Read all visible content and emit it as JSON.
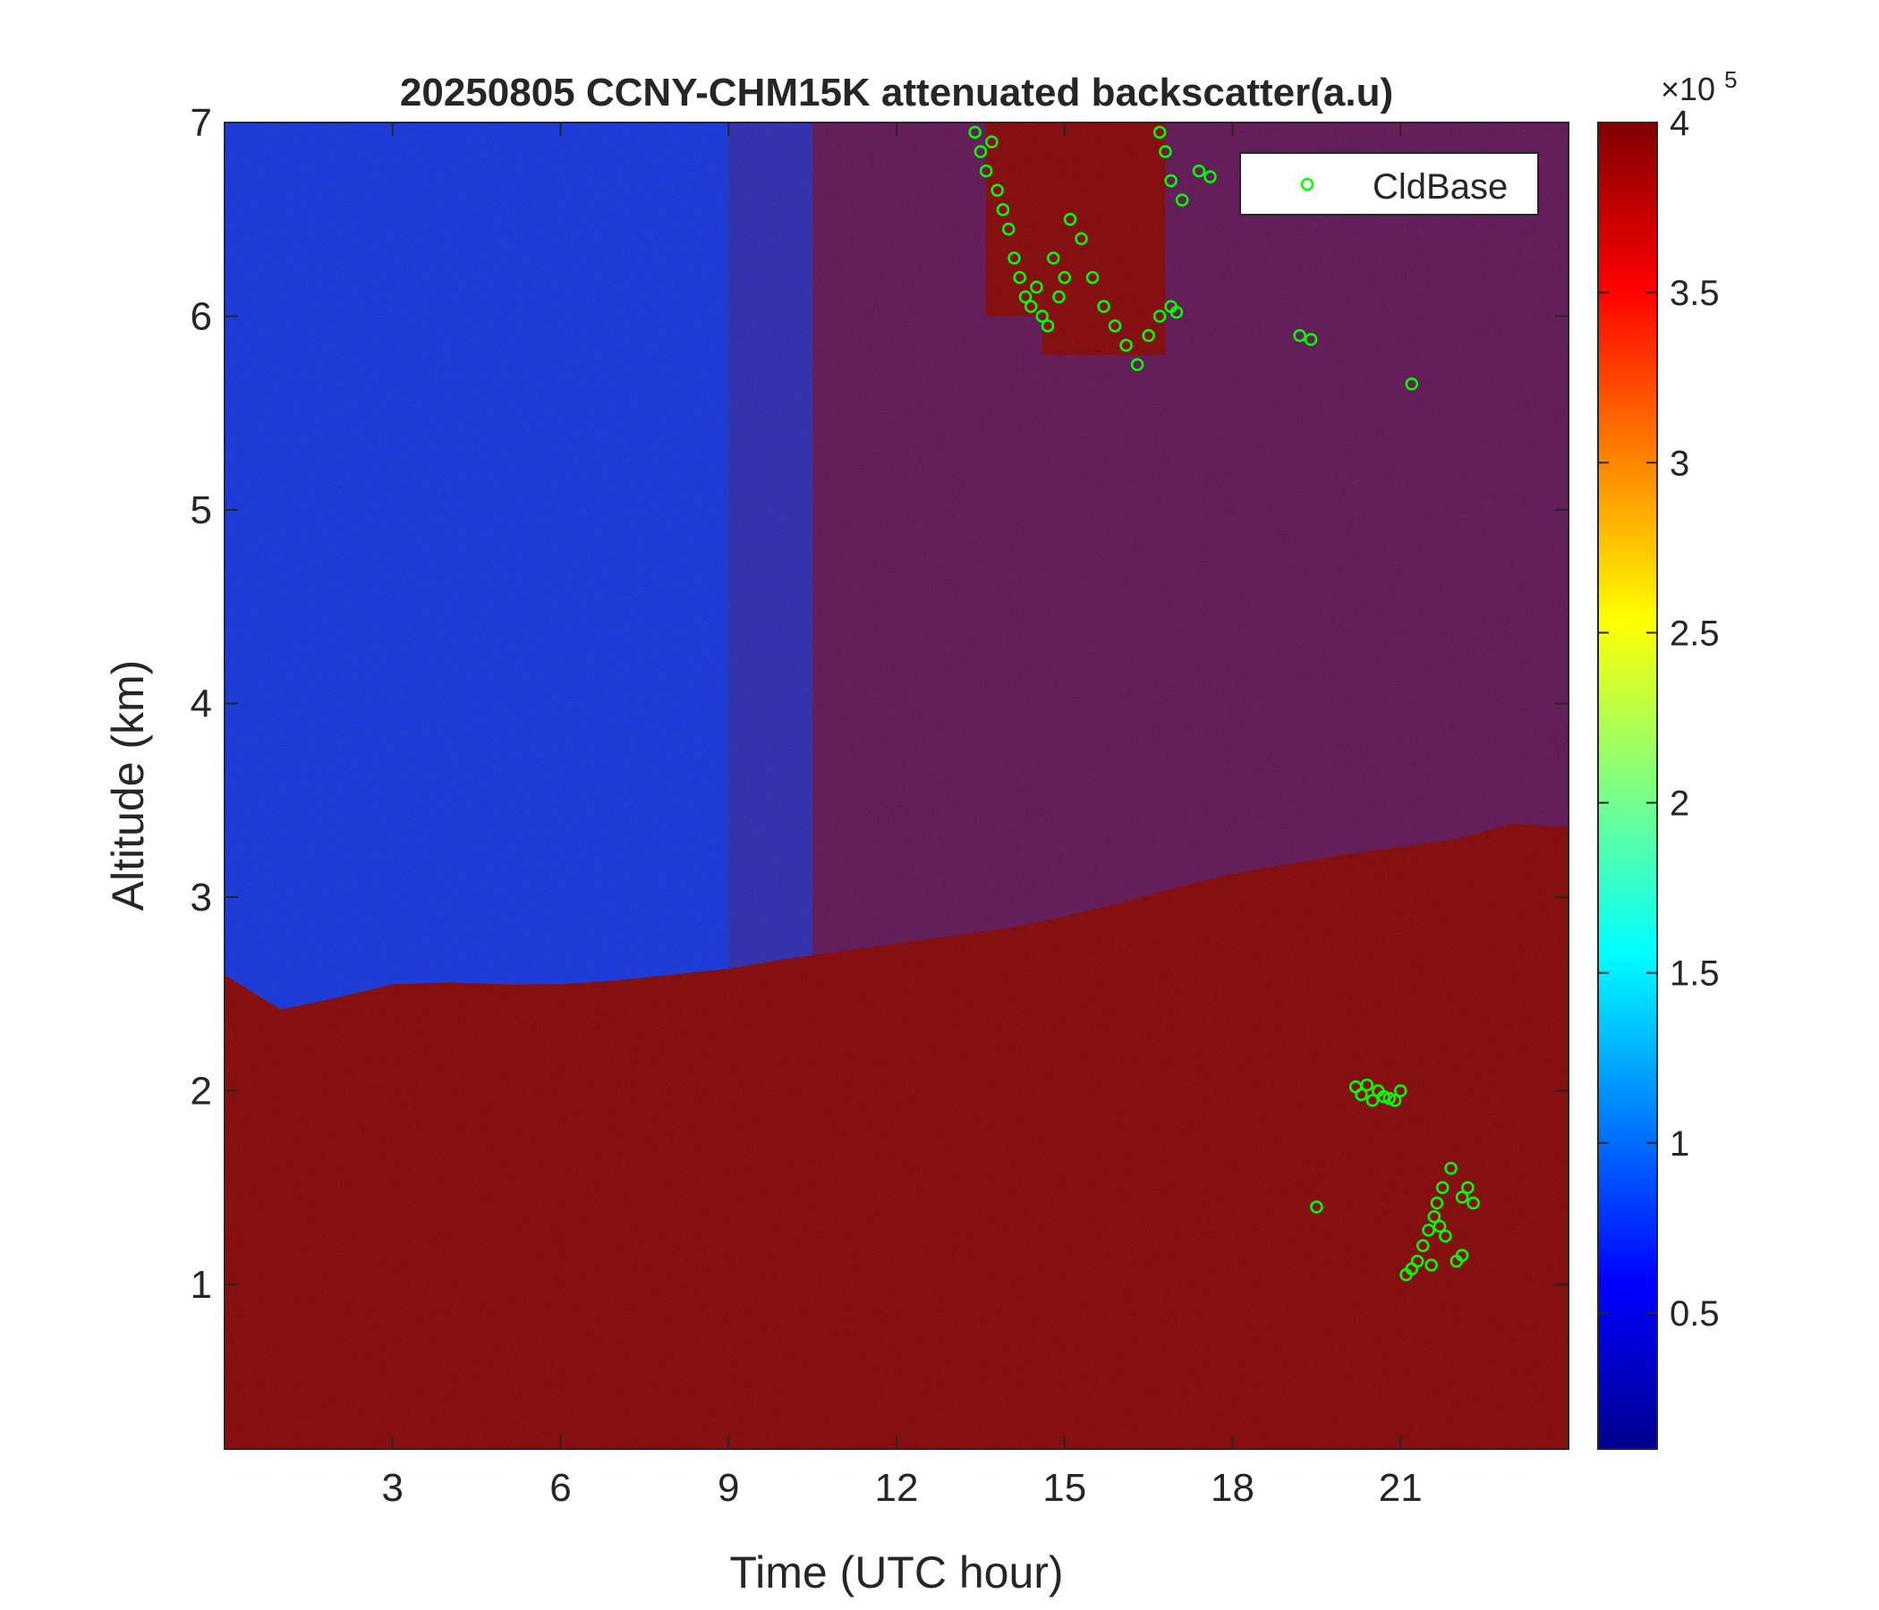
{
  "chart_data": {
    "type": "heatmap",
    "title": "20250805 CCNY-CHM15K attenuated backscatter(a.u)",
    "xlabel": "Time (UTC hour)",
    "ylabel": "Altitude (km)",
    "xlim": [
      0,
      24
    ],
    "ylim": [
      0.15,
      7
    ],
    "xticks": [
      3,
      6,
      9,
      12,
      15,
      18,
      21
    ],
    "yticks": [
      1,
      2,
      3,
      4,
      5,
      6,
      7
    ],
    "colormap": "jet",
    "colorbar": {
      "clim": [
        10000,
        400000
      ],
      "ticks": [
        0.5,
        1,
        1.5,
        2,
        2.5,
        3,
        3.5,
        4
      ],
      "exponent_prefix": "×10",
      "exponent": "5"
    },
    "legend": {
      "placement": "top-right",
      "entries": [
        "CldBase"
      ],
      "marker": "open-circle",
      "color": "#00ff00"
    },
    "fields": {
      "aerosol_layer_top_km": [
        [
          0.0,
          2.6
        ],
        [
          1.0,
          2.42
        ],
        [
          2.0,
          2.48
        ],
        [
          3.0,
          2.55
        ],
        [
          4.0,
          2.56
        ],
        [
          5.0,
          2.55
        ],
        [
          6.0,
          2.55
        ],
        [
          7.0,
          2.57
        ],
        [
          8.0,
          2.6
        ],
        [
          9.0,
          2.63
        ],
        [
          10.0,
          2.68
        ],
        [
          11.0,
          2.72
        ],
        [
          12.0,
          2.76
        ],
        [
          13.0,
          2.8
        ],
        [
          14.0,
          2.84
        ],
        [
          15.0,
          2.9
        ],
        [
          16.0,
          2.97
        ],
        [
          17.0,
          3.05
        ],
        [
          18.0,
          3.12
        ],
        [
          19.0,
          3.17
        ],
        [
          20.0,
          3.22
        ],
        [
          21.0,
          3.26
        ],
        [
          22.0,
          3.3
        ],
        [
          23.0,
          3.38
        ],
        [
          24.0,
          3.36
        ]
      ],
      "high_backscatter_upper_region_start_hour": 10.5,
      "optically_thick_cloud": [
        [
          13.6,
          14.6,
          6.0,
          7.0
        ],
        [
          14.6,
          16.8,
          5.8,
          7.0
        ]
      ]
    },
    "cloud_base": [
      {
        "x": 13.4,
        "y": 6.95
      },
      {
        "x": 13.5,
        "y": 6.85
      },
      {
        "x": 13.6,
        "y": 6.75
      },
      {
        "x": 13.7,
        "y": 6.9
      },
      {
        "x": 13.8,
        "y": 6.65
      },
      {
        "x": 13.9,
        "y": 6.55
      },
      {
        "x": 14.0,
        "y": 6.45
      },
      {
        "x": 14.1,
        "y": 6.3
      },
      {
        "x": 14.2,
        "y": 6.2
      },
      {
        "x": 14.3,
        "y": 6.1
      },
      {
        "x": 14.4,
        "y": 6.05
      },
      {
        "x": 14.5,
        "y": 6.15
      },
      {
        "x": 14.6,
        "y": 6.0
      },
      {
        "x": 14.7,
        "y": 5.95
      },
      {
        "x": 14.8,
        "y": 6.3
      },
      {
        "x": 14.9,
        "y": 6.1
      },
      {
        "x": 15.0,
        "y": 6.2
      },
      {
        "x": 15.1,
        "y": 6.5
      },
      {
        "x": 15.3,
        "y": 6.4
      },
      {
        "x": 15.5,
        "y": 6.2
      },
      {
        "x": 15.7,
        "y": 6.05
      },
      {
        "x": 15.9,
        "y": 5.95
      },
      {
        "x": 16.1,
        "y": 5.85
      },
      {
        "x": 16.3,
        "y": 5.75
      },
      {
        "x": 16.5,
        "y": 5.9
      },
      {
        "x": 16.7,
        "y": 6.0
      },
      {
        "x": 16.9,
        "y": 6.05
      },
      {
        "x": 17.0,
        "y": 6.02
      },
      {
        "x": 16.7,
        "y": 6.95
      },
      {
        "x": 16.8,
        "y": 6.85
      },
      {
        "x": 16.9,
        "y": 6.7
      },
      {
        "x": 17.1,
        "y": 6.6
      },
      {
        "x": 17.4,
        "y": 6.75
      },
      {
        "x": 17.6,
        "y": 6.72
      },
      {
        "x": 19.2,
        "y": 5.9
      },
      {
        "x": 19.4,
        "y": 5.88
      },
      {
        "x": 21.2,
        "y": 5.65
      },
      {
        "x": 20.2,
        "y": 2.02
      },
      {
        "x": 20.3,
        "y": 1.98
      },
      {
        "x": 20.4,
        "y": 2.03
      },
      {
        "x": 20.5,
        "y": 1.95
      },
      {
        "x": 20.6,
        "y": 2.0
      },
      {
        "x": 20.7,
        "y": 1.97
      },
      {
        "x": 20.8,
        "y": 1.96
      },
      {
        "x": 20.9,
        "y": 1.95
      },
      {
        "x": 21.0,
        "y": 2.0
      },
      {
        "x": 19.5,
        "y": 1.4
      },
      {
        "x": 21.1,
        "y": 1.05
      },
      {
        "x": 21.2,
        "y": 1.08
      },
      {
        "x": 21.3,
        "y": 1.12
      },
      {
        "x": 21.4,
        "y": 1.2
      },
      {
        "x": 21.5,
        "y": 1.28
      },
      {
        "x": 21.6,
        "y": 1.35
      },
      {
        "x": 21.7,
        "y": 1.3
      },
      {
        "x": 21.8,
        "y": 1.25
      },
      {
        "x": 21.55,
        "y": 1.1
      },
      {
        "x": 21.65,
        "y": 1.42
      },
      {
        "x": 21.75,
        "y": 1.5
      },
      {
        "x": 21.9,
        "y": 1.6
      },
      {
        "x": 22.1,
        "y": 1.45
      },
      {
        "x": 22.2,
        "y": 1.5
      },
      {
        "x": 22.3,
        "y": 1.42
      },
      {
        "x": 22.0,
        "y": 1.12
      },
      {
        "x": 22.1,
        "y": 1.15
      }
    ]
  }
}
